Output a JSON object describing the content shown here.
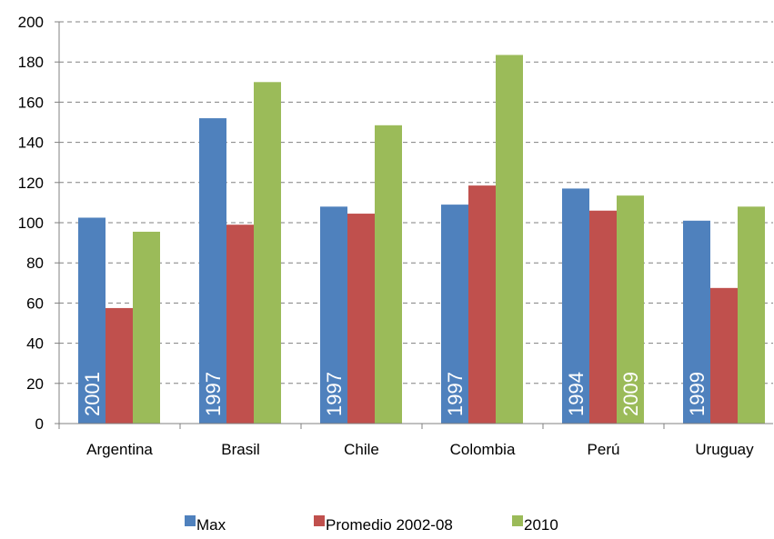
{
  "chart_data": {
    "type": "bar",
    "title": "",
    "xlabel": "",
    "ylabel": "",
    "ylim": [
      0,
      200
    ],
    "yticks": [
      0,
      20,
      40,
      60,
      80,
      100,
      120,
      140,
      160,
      180,
      200
    ],
    "grid": "horizontal dashed",
    "legend_position": "bottom",
    "categories": [
      "Argentina",
      "Brasil",
      "Chile",
      "Colombia",
      "Perú",
      "Uruguay"
    ],
    "series": [
      {
        "name": "Max",
        "color": "#4F81BD",
        "values": [
          102.5,
          152,
          108,
          109,
          117,
          101
        ]
      },
      {
        "name": "Promedio 2002-08",
        "color": "#C0504D",
        "values": [
          57.5,
          99,
          104.5,
          118.5,
          106,
          67.5
        ]
      },
      {
        "name": "2010",
        "color": "#9BBB59",
        "values": [
          95.5,
          170,
          148.5,
          183.5,
          113.5,
          108
        ]
      }
    ],
    "annotations": [
      {
        "category": "Argentina",
        "series": "Max",
        "text": "2001"
      },
      {
        "category": "Brasil",
        "series": "Max",
        "text": "1997"
      },
      {
        "category": "Chile",
        "series": "Max",
        "text": "1997"
      },
      {
        "category": "Colombia",
        "series": "Max",
        "text": "1997"
      },
      {
        "category": "Perú",
        "series": "Max",
        "text": "1994"
      },
      {
        "category": "Perú",
        "series": "2010",
        "text": "2009"
      },
      {
        "category": "Uruguay",
        "series": "Max",
        "text": "1999"
      }
    ]
  }
}
